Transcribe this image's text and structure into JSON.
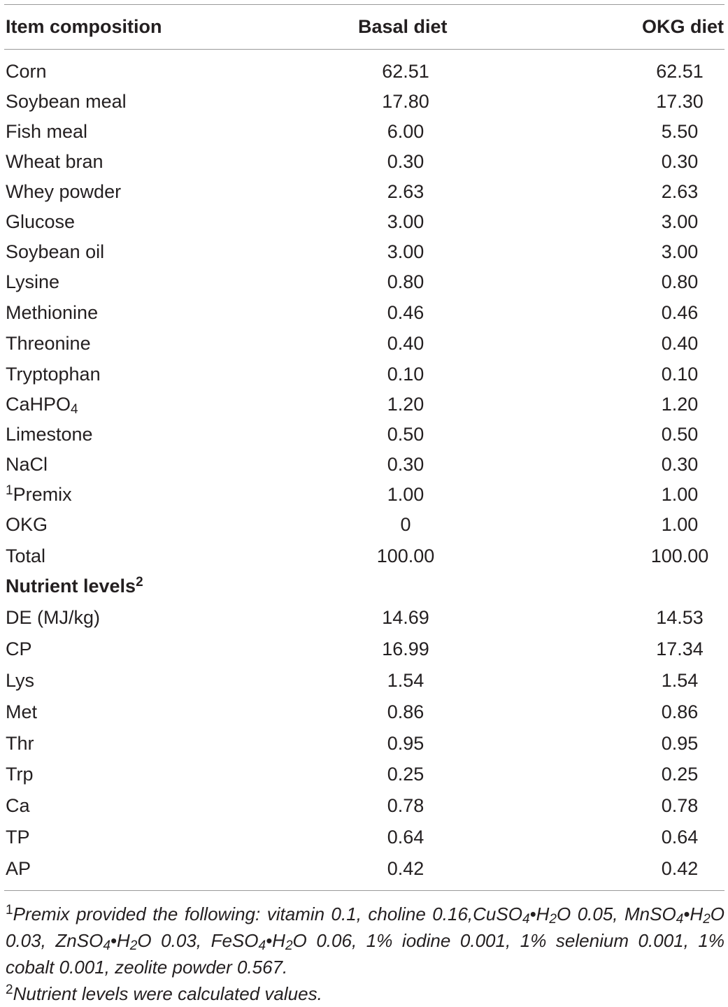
{
  "headers": [
    "Item composition",
    "Basal diet",
    "OKG diet"
  ],
  "rows": [
    {
      "item": "Corn",
      "basal": "62.51",
      "okg": "62.51"
    },
    {
      "item": "Soybean meal",
      "basal": "17.80",
      "okg": "17.30"
    },
    {
      "item": "Fish meal",
      "basal": "6.00",
      "okg": "5.50"
    },
    {
      "item": "Wheat bran",
      "basal": "0.30",
      "okg": "0.30"
    },
    {
      "item": "Whey powder",
      "basal": "2.63",
      "okg": "2.63"
    },
    {
      "item": "Glucose",
      "basal": "3.00",
      "okg": "3.00"
    },
    {
      "item": "Soybean oil",
      "basal": "3.00",
      "okg": "3.00"
    },
    {
      "item": "Lysine",
      "basal": "0.80",
      "okg": "0.80"
    },
    {
      "item": "Methionine",
      "basal": "0.46",
      "okg": "0.46"
    },
    {
      "item": "Threonine",
      "basal": "0.40",
      "okg": "0.40"
    },
    {
      "item": "Tryptophan",
      "basal": "0.10",
      "okg": "0.10"
    },
    {
      "item": "CaHPO",
      "item_sub": "4",
      "basal": "1.20",
      "okg": "1.20"
    },
    {
      "item": "Limestone",
      "basal": "0.50",
      "okg": "0.50"
    },
    {
      "item": "NaCl",
      "basal": "0.30",
      "okg": "0.30"
    },
    {
      "item_sup": "1",
      "item": "Premix",
      "basal": "1.00",
      "okg": "1.00"
    },
    {
      "item": "OKG",
      "basal": "0",
      "okg": "1.00"
    },
    {
      "item": "Total",
      "basal": "100.00",
      "okg": "100.00"
    },
    {
      "section": true,
      "item": "Nutrient levels",
      "item_sup_after": "2"
    },
    {
      "item": "DE (MJ/kg)",
      "basal": "14.69",
      "okg": "14.53"
    },
    {
      "item": "CP",
      "basal": "16.99",
      "okg": "17.34"
    },
    {
      "item": "Lys",
      "basal": "1.54",
      "okg": "1.54"
    },
    {
      "item": "Met",
      "basal": "0.86",
      "okg": "0.86"
    },
    {
      "item": "Thr",
      "basal": "0.95",
      "okg": "0.95"
    },
    {
      "item": "Trp",
      "basal": "0.25",
      "okg": "0.25"
    },
    {
      "item": "Ca",
      "basal": "0.78",
      "okg": "0.78"
    },
    {
      "item": "TP",
      "basal": "0.64",
      "okg": "0.64"
    },
    {
      "item": "AP",
      "basal": "0.42",
      "okg": "0.42"
    }
  ],
  "footnotes": {
    "note1": {
      "mark": "1",
      "p1": "Premix provided the following: vitamin 0.1, choline 0.16,CuSO",
      "s1": "4",
      "p2": "•H",
      "s2": "2",
      "p3": "O 0.05, MnSO",
      "s3": "4",
      "p4": "•H",
      "s4": "2",
      "p5": "O 0.03, ZnSO",
      "s5": "4",
      "p6": "•H",
      "s6": "2",
      "p7": "O 0.03, FeSO",
      "s7": "4",
      "p8": "•H",
      "s8": "2",
      "p9": "O 0.06, 1% iodine 0.001, 1% selenium 0.001, 1% cobalt 0.001, zeolite powder 0.567."
    },
    "note2": {
      "mark": "2",
      "text": "Nutrient levels were calculated values."
    }
  }
}
